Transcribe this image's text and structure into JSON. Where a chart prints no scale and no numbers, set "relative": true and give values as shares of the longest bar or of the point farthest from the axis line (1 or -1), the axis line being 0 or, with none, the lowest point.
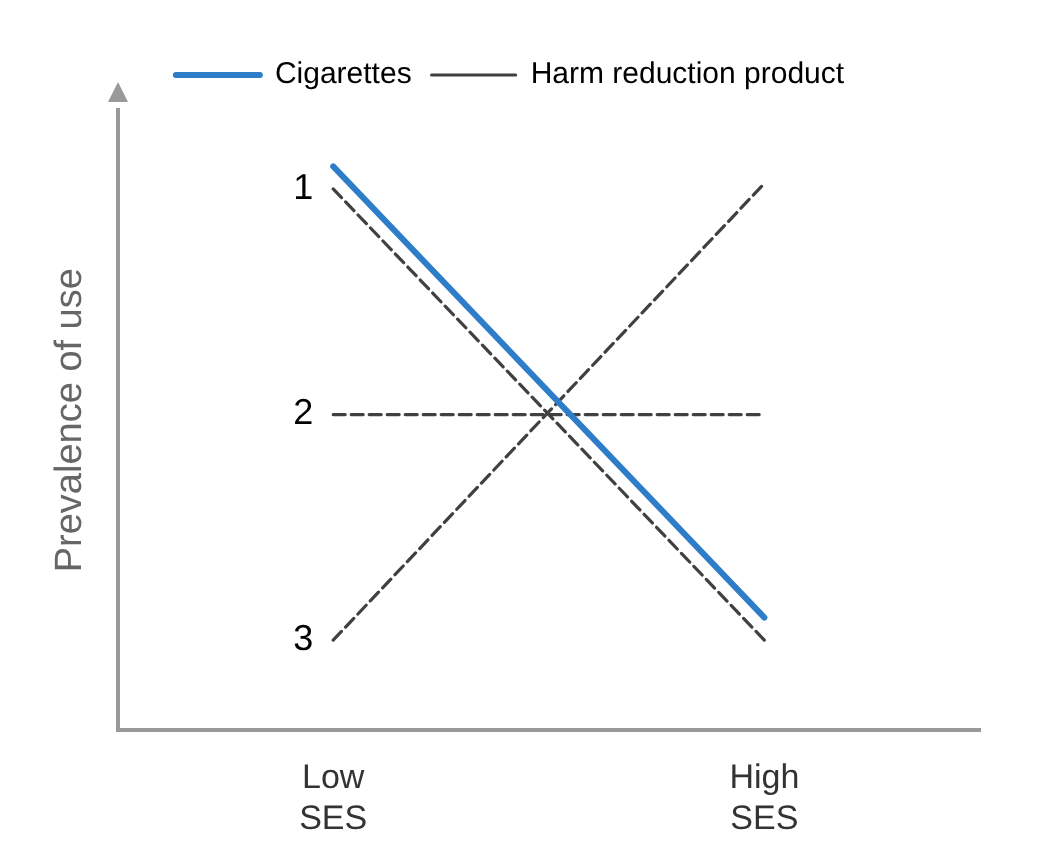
{
  "chart_data": {
    "type": "line",
    "relative": true,
    "ylabel": "Prevalence of use",
    "categories": [
      "Low SES",
      "High SES"
    ],
    "series": [
      {
        "name": "Cigarettes",
        "color": "#2e7dc8",
        "values": [
          1,
          0.2
        ],
        "line_style": "solid"
      },
      {
        "name": "Harm reduction product",
        "color": "#404040",
        "values": [
          0.96,
          0.16
        ],
        "line_style": "dashed"
      },
      {
        "color": "#404040",
        "values": [
          0.56,
          0.56
        ],
        "line_style": "dashed"
      },
      {
        "color": "#404040",
        "values": [
          0.16,
          0.97
        ],
        "line_style": "dashed"
      }
    ],
    "annotations": [
      {
        "text": "1",
        "x": "Low SES",
        "y": 0.96
      },
      {
        "text": "2",
        "x": "Low SES",
        "y": 0.56
      },
      {
        "text": "3",
        "x": "Low SES",
        "y": 0.16
      }
    ],
    "legend": "top",
    "grid": false,
    "tick_labels": "x",
    "marker": "none"
  }
}
